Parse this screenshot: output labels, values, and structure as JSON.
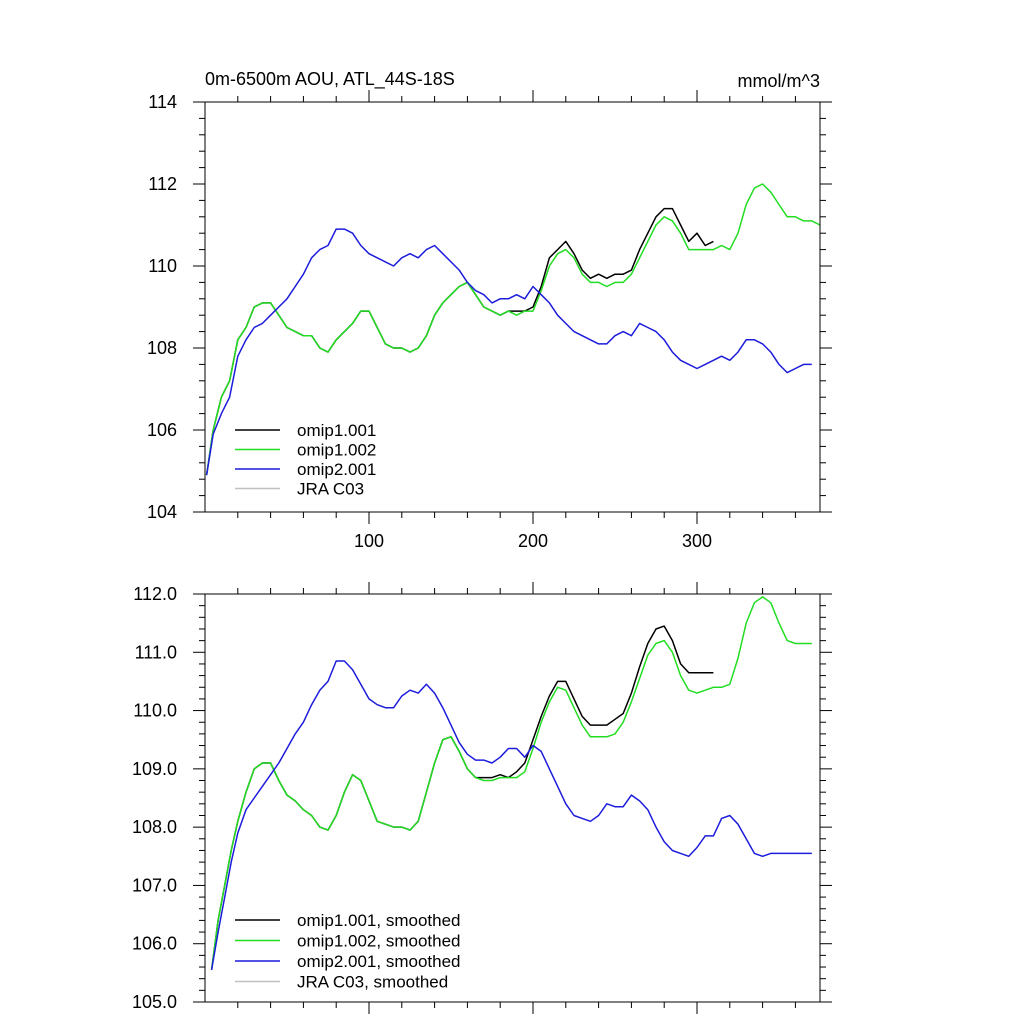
{
  "chart_data": [
    {
      "type": "line",
      "title": "0m-6500m AOU, ATL_44S-18S",
      "units": "mmol/m^3",
      "xlim": [
        0,
        375
      ],
      "ylim": [
        104,
        114
      ],
      "xticks": [
        100,
        200,
        300
      ],
      "xtick_labels": [
        "100",
        "200",
        "300"
      ],
      "yticks": [
        104,
        106,
        108,
        110,
        112,
        114
      ],
      "ytick_labels": [
        "104",
        "106",
        "108",
        "110",
        "112",
        "114"
      ],
      "legend_position": "bottom-left",
      "series": [
        {
          "name": "omip1.001",
          "color": "#000000",
          "x": [
            1,
            5,
            10,
            15,
            20,
            25,
            30,
            35,
            40,
            45,
            50,
            55,
            60,
            65,
            70,
            75,
            80,
            85,
            90,
            95,
            100,
            105,
            110,
            115,
            120,
            125,
            130,
            135,
            140,
            145,
            150,
            155,
            160,
            165,
            170,
            175,
            180,
            185,
            190,
            195,
            200,
            205,
            210,
            215,
            220,
            225,
            230,
            235,
            240,
            245,
            250,
            255,
            260,
            265,
            270,
            275,
            280,
            285,
            290,
            295,
            300,
            305,
            310
          ],
          "y": [
            104.9,
            106.0,
            106.8,
            107.2,
            108.2,
            108.5,
            109.0,
            109.1,
            109.1,
            108.8,
            108.5,
            108.4,
            108.3,
            108.3,
            108.0,
            107.9,
            108.2,
            108.4,
            108.6,
            108.9,
            108.9,
            108.5,
            108.1,
            108.0,
            108.0,
            107.9,
            108.0,
            108.3,
            108.8,
            109.1,
            109.3,
            109.5,
            109.6,
            109.3,
            109.0,
            108.9,
            108.8,
            108.9,
            108.9,
            108.9,
            109.0,
            109.5,
            110.2,
            110.4,
            110.6,
            110.3,
            109.9,
            109.7,
            109.8,
            109.7,
            109.8,
            109.8,
            109.9,
            110.4,
            110.8,
            111.2,
            111.4,
            111.4,
            111.0,
            110.6,
            110.8,
            110.5,
            110.6
          ]
        },
        {
          "name": "omip1.002",
          "color": "#22dd22",
          "x": [
            1,
            5,
            10,
            15,
            20,
            25,
            30,
            35,
            40,
            45,
            50,
            55,
            60,
            65,
            70,
            75,
            80,
            85,
            90,
            95,
            100,
            105,
            110,
            115,
            120,
            125,
            130,
            135,
            140,
            145,
            150,
            155,
            160,
            165,
            170,
            175,
            180,
            185,
            190,
            195,
            200,
            205,
            210,
            215,
            220,
            225,
            230,
            235,
            240,
            245,
            250,
            255,
            260,
            265,
            270,
            275,
            280,
            285,
            290,
            295,
            300,
            305,
            310,
            315,
            320,
            325,
            330,
            335,
            340,
            345,
            350,
            355,
            360,
            365,
            370,
            375
          ],
          "y": [
            104.9,
            106.0,
            106.8,
            107.2,
            108.2,
            108.5,
            109.0,
            109.1,
            109.1,
            108.8,
            108.5,
            108.4,
            108.3,
            108.3,
            108.0,
            107.9,
            108.2,
            108.4,
            108.6,
            108.9,
            108.9,
            108.5,
            108.1,
            108.0,
            108.0,
            107.9,
            108.0,
            108.3,
            108.8,
            109.1,
            109.3,
            109.5,
            109.6,
            109.3,
            109.0,
            108.9,
            108.8,
            108.9,
            108.8,
            108.9,
            108.9,
            109.4,
            110.0,
            110.3,
            110.4,
            110.2,
            109.8,
            109.6,
            109.6,
            109.5,
            109.6,
            109.6,
            109.8,
            110.2,
            110.6,
            111.0,
            111.2,
            111.1,
            110.8,
            110.4,
            110.4,
            110.4,
            110.4,
            110.5,
            110.4,
            110.8,
            111.5,
            111.9,
            112.0,
            111.8,
            111.5,
            111.2,
            111.2,
            111.1,
            111.1,
            111.0
          ]
        },
        {
          "name": "omip2.001",
          "color": "#1c1cdc",
          "x": [
            1,
            5,
            10,
            15,
            20,
            25,
            30,
            35,
            40,
            45,
            50,
            55,
            60,
            65,
            70,
            75,
            80,
            85,
            90,
            95,
            100,
            105,
            110,
            115,
            120,
            125,
            130,
            135,
            140,
            145,
            150,
            155,
            160,
            165,
            170,
            175,
            180,
            185,
            190,
            195,
            200,
            205,
            210,
            215,
            220,
            225,
            230,
            235,
            240,
            245,
            250,
            255,
            260,
            265,
            270,
            275,
            280,
            285,
            290,
            295,
            300,
            305,
            310,
            315,
            320,
            325,
            330,
            335,
            340,
            345,
            350,
            355,
            360,
            365,
            370
          ],
          "y": [
            104.9,
            105.9,
            106.4,
            106.8,
            107.8,
            108.2,
            108.5,
            108.6,
            108.8,
            109.0,
            109.2,
            109.5,
            109.8,
            110.2,
            110.4,
            110.5,
            110.9,
            110.9,
            110.8,
            110.5,
            110.3,
            110.2,
            110.1,
            110.0,
            110.2,
            110.3,
            110.2,
            110.4,
            110.5,
            110.3,
            110.1,
            109.9,
            109.6,
            109.4,
            109.3,
            109.1,
            109.2,
            109.2,
            109.3,
            109.2,
            109.5,
            109.3,
            109.1,
            108.8,
            108.6,
            108.4,
            108.3,
            108.2,
            108.1,
            108.1,
            108.3,
            108.4,
            108.3,
            108.6,
            108.5,
            108.4,
            108.2,
            107.9,
            107.7,
            107.6,
            107.5,
            107.6,
            107.7,
            107.8,
            107.7,
            107.9,
            108.2,
            108.2,
            108.1,
            107.9,
            107.6,
            107.4,
            107.5,
            107.6,
            107.6
          ]
        },
        {
          "name": "JRA C03",
          "color": "#c0c0c0",
          "x": [],
          "y": []
        }
      ]
    },
    {
      "type": "line",
      "title": "",
      "units": "",
      "xlim": [
        0,
        375
      ],
      "ylim": [
        105,
        112
      ],
      "xticks": [
        100,
        200,
        300
      ],
      "xtick_labels": [],
      "yticks": [
        105,
        106,
        107,
        108,
        109,
        110,
        111,
        112
      ],
      "ytick_labels": [
        "105.0",
        "106.0",
        "107.0",
        "108.0",
        "109.0",
        "110.0",
        "111.0",
        "112.0"
      ],
      "legend_position": "bottom-left",
      "series": [
        {
          "name": "omip1.001, smoothed",
          "color": "#000000",
          "x": [
            4,
            8,
            12,
            16,
            20,
            25,
            30,
            35,
            40,
            45,
            50,
            55,
            60,
            65,
            70,
            75,
            80,
            85,
            90,
            95,
            100,
            105,
            110,
            115,
            120,
            125,
            130,
            135,
            140,
            145,
            150,
            155,
            160,
            165,
            170,
            175,
            180,
            185,
            190,
            195,
            200,
            205,
            210,
            215,
            220,
            225,
            230,
            235,
            240,
            245,
            250,
            255,
            260,
            265,
            270,
            275,
            280,
            285,
            290,
            295,
            300,
            305,
            310
          ],
          "y": [
            105.55,
            106.4,
            107.0,
            107.6,
            108.1,
            108.6,
            109.0,
            109.1,
            109.1,
            108.8,
            108.55,
            108.45,
            108.3,
            108.2,
            108.0,
            107.95,
            108.2,
            108.6,
            108.9,
            108.8,
            108.45,
            108.1,
            108.05,
            108.0,
            108.0,
            107.95,
            108.1,
            108.6,
            109.1,
            109.5,
            109.55,
            109.3,
            109.0,
            108.85,
            108.85,
            108.85,
            108.9,
            108.85,
            108.95,
            109.1,
            109.5,
            109.9,
            110.25,
            110.5,
            110.5,
            110.2,
            109.9,
            109.75,
            109.75,
            109.75,
            109.85,
            109.95,
            110.3,
            110.75,
            111.15,
            111.4,
            111.45,
            111.2,
            110.8,
            110.65,
            110.65,
            110.65,
            110.65
          ]
        },
        {
          "name": "omip1.002, smoothed",
          "color": "#22dd22",
          "x": [
            4,
            8,
            12,
            16,
            20,
            25,
            30,
            35,
            40,
            45,
            50,
            55,
            60,
            65,
            70,
            75,
            80,
            85,
            90,
            95,
            100,
            105,
            110,
            115,
            120,
            125,
            130,
            135,
            140,
            145,
            150,
            155,
            160,
            165,
            170,
            175,
            180,
            185,
            190,
            195,
            200,
            205,
            210,
            215,
            220,
            225,
            230,
            235,
            240,
            245,
            250,
            255,
            260,
            265,
            270,
            275,
            280,
            285,
            290,
            295,
            300,
            305,
            310,
            315,
            320,
            325,
            330,
            335,
            340,
            345,
            350,
            355,
            360,
            365,
            370
          ],
          "y": [
            105.55,
            106.4,
            107.0,
            107.6,
            108.1,
            108.6,
            109.0,
            109.1,
            109.1,
            108.8,
            108.55,
            108.45,
            108.3,
            108.2,
            108.0,
            107.95,
            108.2,
            108.6,
            108.9,
            108.8,
            108.45,
            108.1,
            108.05,
            108.0,
            108.0,
            107.95,
            108.1,
            108.6,
            109.1,
            109.5,
            109.55,
            109.3,
            109.0,
            108.85,
            108.8,
            108.8,
            108.85,
            108.85,
            108.85,
            108.95,
            109.35,
            109.8,
            110.15,
            110.4,
            110.35,
            110.05,
            109.75,
            109.55,
            109.55,
            109.55,
            109.6,
            109.8,
            110.15,
            110.55,
            110.95,
            111.15,
            111.2,
            111.0,
            110.6,
            110.35,
            110.3,
            110.35,
            110.4,
            110.4,
            110.45,
            110.9,
            111.5,
            111.85,
            111.95,
            111.85,
            111.5,
            111.2,
            111.15,
            111.15,
            111.15
          ]
        },
        {
          "name": "omip2.001, smoothed",
          "color": "#1c1cdc",
          "x": [
            4,
            8,
            12,
            16,
            20,
            25,
            30,
            35,
            40,
            45,
            50,
            55,
            60,
            65,
            70,
            75,
            80,
            85,
            90,
            95,
            100,
            105,
            110,
            115,
            120,
            125,
            130,
            135,
            140,
            145,
            150,
            155,
            160,
            165,
            170,
            175,
            180,
            185,
            190,
            195,
            200,
            205,
            210,
            215,
            220,
            225,
            230,
            235,
            240,
            245,
            250,
            255,
            260,
            265,
            270,
            275,
            280,
            285,
            290,
            295,
            300,
            305,
            310,
            315,
            320,
            325,
            330,
            335,
            340,
            345,
            350,
            355,
            360,
            365,
            370
          ],
          "y": [
            105.55,
            106.2,
            106.8,
            107.4,
            107.9,
            108.3,
            108.5,
            108.7,
            108.9,
            109.1,
            109.35,
            109.6,
            109.8,
            110.1,
            110.35,
            110.5,
            110.85,
            110.85,
            110.7,
            110.45,
            110.2,
            110.1,
            110.05,
            110.05,
            110.25,
            110.35,
            110.3,
            110.45,
            110.3,
            110.05,
            109.75,
            109.45,
            109.25,
            109.15,
            109.15,
            109.1,
            109.2,
            109.35,
            109.35,
            109.2,
            109.4,
            109.3,
            109.0,
            108.7,
            108.4,
            108.2,
            108.15,
            108.1,
            108.2,
            108.4,
            108.35,
            108.35,
            108.55,
            108.45,
            108.3,
            108.0,
            107.75,
            107.6,
            107.55,
            107.5,
            107.65,
            107.85,
            107.85,
            108.15,
            108.2,
            108.05,
            107.8,
            107.55,
            107.5,
            107.55,
            107.55,
            107.55,
            107.55,
            107.55,
            107.55
          ]
        },
        {
          "name": "JRA C03, smoothed",
          "color": "#c0c0c0",
          "x": [],
          "y": []
        }
      ]
    }
  ]
}
